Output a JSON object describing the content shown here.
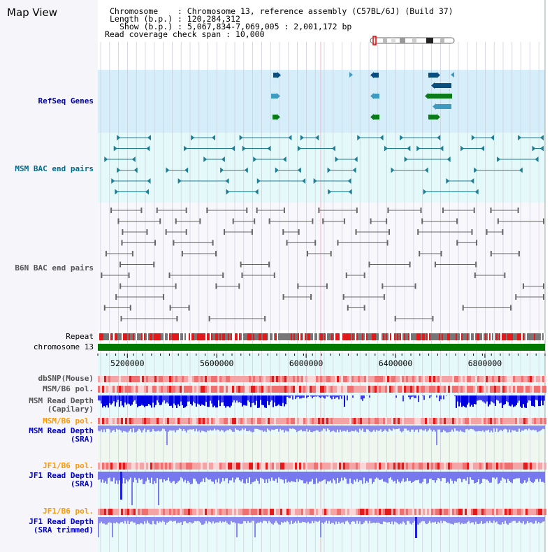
{
  "page_title": "Map View",
  "header": {
    "lines": [
      {
        "label": "Chromosome",
        "value": "Chromosome 13, reference assembly (C57BL/6J) (Build 37)"
      },
      {
        "label": "Length (b.p.)",
        "value": "120,284,312"
      },
      {
        "label": "Show (b.p.)",
        "value": "5,067,834-7,069,005 : 2,001,172 bp"
      },
      {
        "label": "Read coverage check span",
        "value": "10,000"
      }
    ]
  },
  "axis": {
    "start": 5067834,
    "end": 7069005,
    "ticks": [
      "5200000",
      "5600000",
      "6000000",
      "6400000",
      "6800000"
    ]
  },
  "tracks": {
    "refseq": {
      "label": "RefSeq Genes",
      "color": "#000099"
    },
    "msm_bac": {
      "label": "MSM BAC end pairs",
      "color": "#006d8f"
    },
    "b6n_bac": {
      "label": "B6N BAC end pairs",
      "color": "#555555"
    },
    "repeat": {
      "label": "Repeat",
      "color": "#000000"
    },
    "chromosome": {
      "label": "chromosome 13",
      "color": "#000000"
    },
    "dbsnp": {
      "label": "dbSNP(Mouse)",
      "color": "#555555"
    },
    "msm_pol": {
      "label": "MSM/B6 pol.",
      "color": "#555555"
    },
    "msm_depth_cap": {
      "label": "MSM Read Depth\n(Capilary)",
      "color": "#555555"
    },
    "msm_pol_sra": {
      "label": "MSM/B6 pol.",
      "color": "#ff9900"
    },
    "msm_depth_sra": {
      "label": "MSM Read Depth\n(SRA)",
      "color": "#0000cc"
    },
    "jf1_pol": {
      "label": "JF1/B6 pol.",
      "color": "#ff9900"
    },
    "jf1_depth_sra": {
      "label": "JF1 Read Depth\n(SRA)",
      "color": "#0000cc"
    },
    "jf1_pol_trim": {
      "label": "JF1/B6 pol.",
      "color": "#ff9900"
    },
    "jf1_depth_trim": {
      "label": "JF1 Read Depth\n(SRA trimmed)",
      "color": "#0000cc"
    }
  }
}
